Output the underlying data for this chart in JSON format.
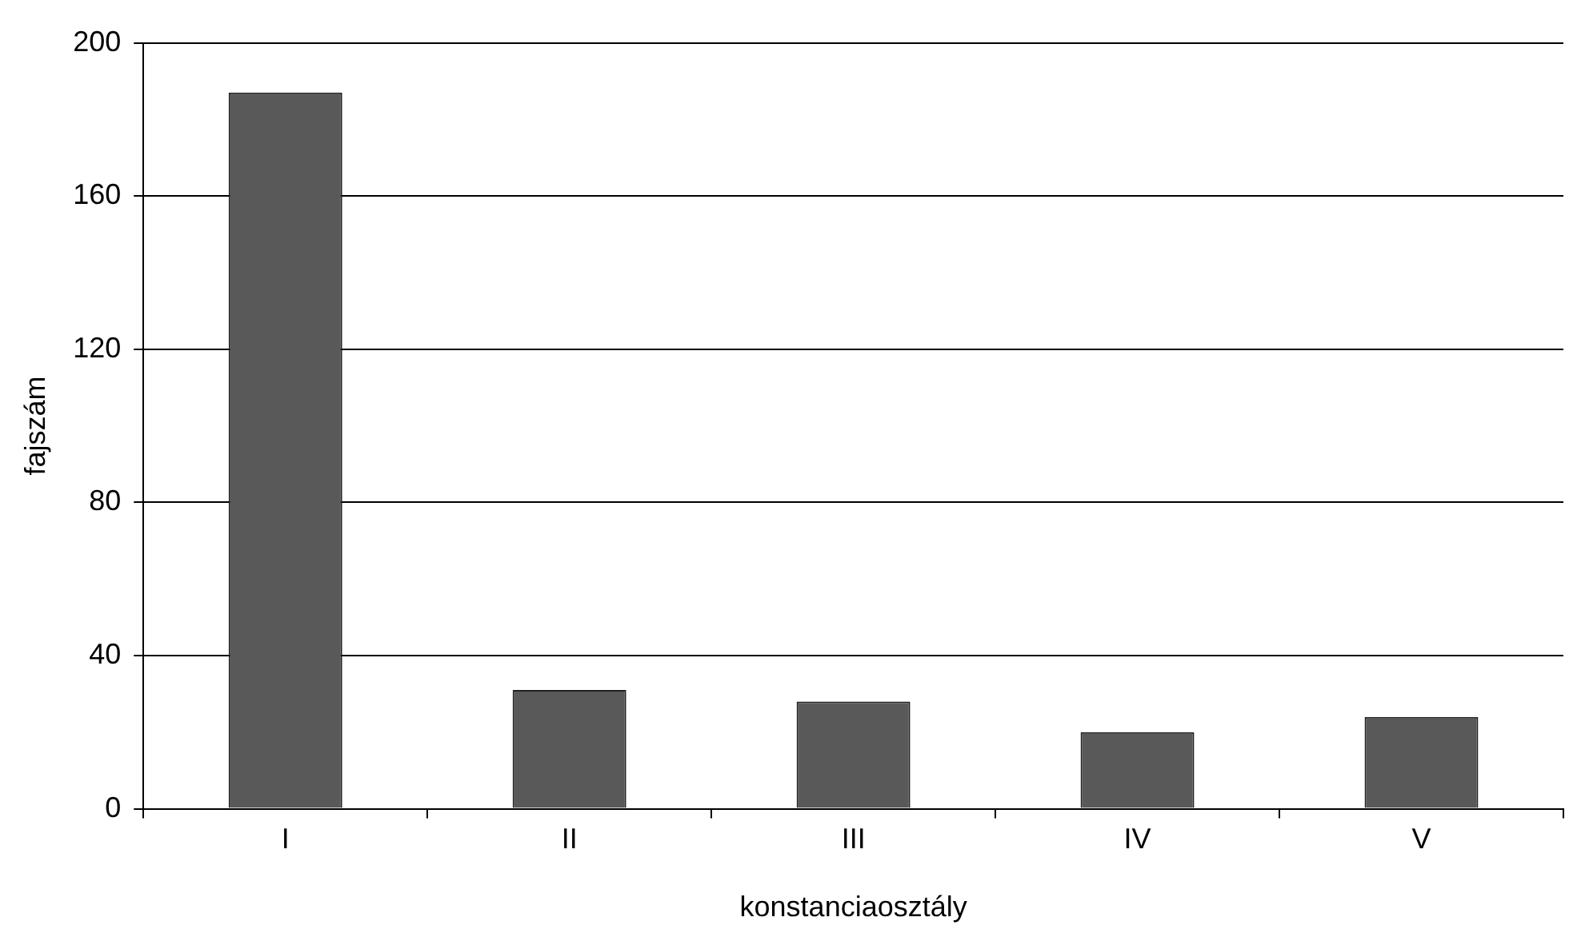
{
  "chart_data": {
    "type": "bar",
    "xlabel": "konstanciaosztály",
    "ylabel": "fajszám",
    "categories": [
      "I",
      "II",
      "III",
      "IV",
      "V"
    ],
    "values": [
      187,
      31,
      28,
      20,
      24
    ],
    "color": "#595959",
    "ylim": [
      0,
      200
    ],
    "yticks": [
      0,
      40,
      80,
      120,
      160,
      200
    ],
    "grid": "y",
    "legend": false
  }
}
